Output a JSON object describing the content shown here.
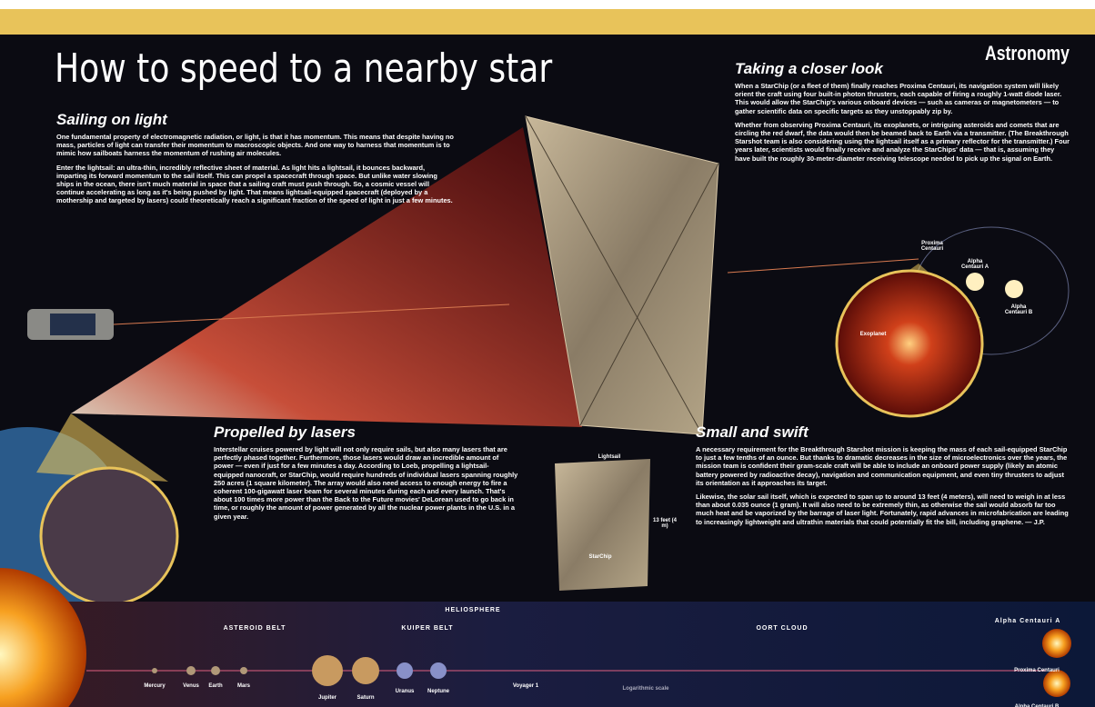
{
  "header": {
    "title": "How to speed to a nearby star",
    "logo": "Astronomy"
  },
  "sections": [
    {
      "heading": "Sailing on light",
      "paragraphs": [
        "One fundamental property of electromagnetic radiation, or light, is that it has momentum. This means that despite having no mass, particles of light can transfer their momentum to macroscopic objects. And one way to harness that momentum is to mimic how sailboats harness the momentum of rushing air molecules.",
        "Enter the lightsail: an ultra-thin, incredibly reflective sheet of material. As light hits a lightsail, it bounces backward, imparting its forward momentum to the sail itself. This can propel a spacecraft through space. But unlike water slowing ships in the ocean, there isn't much material in space that a sailing craft must push through. So, a cosmic vessel will continue accelerating as long as it's being pushed by light. That means lightsail-equipped spacecraft (deployed by a mothership and targeted by lasers) could theoretically reach a significant fraction of the speed of light in just a few minutes."
      ]
    },
    {
      "heading": "Taking a closer look",
      "paragraphs": [
        "When a StarChip (or a fleet of them) finally reaches Proxima Centauri, its navigation system will likely orient the craft using four built-in photon thrusters, each capable of firing a roughly 1-watt diode laser. This would allow the StarChip's various onboard devices — such as cameras or magnetometers — to gather scientific data on specific targets as they unstoppably zip by.",
        "Whether from observing Proxima Centauri, its exoplanets, or intriguing asteroids and comets that are circling the red dwarf, the data would then be beamed back to Earth via a transmitter. (The Breakthrough Starshot team is also considering using the lightsail itself as a primary reflector for the transmitter.) Four years later, scientists would finally receive and analyze the StarChips' data — that is, assuming they have built the roughly 30-meter-diameter receiving telescope needed to pick up the signal on Earth."
      ]
    },
    {
      "heading": "Propelled by lasers",
      "paragraphs": [
        "Interstellar cruises powered by light will not only require sails, but also many lasers that are perfectly phased together. Furthermore, those lasers would draw an incredible amount of power — even if just for a few minutes a day. According to Loeb, propelling a lightsail-equipped nanocraft, or StarChip, would require hundreds of individual lasers spanning roughly 250 acres (1 square kilometer). The array would also need access to enough energy to fire a coherent 100-gigawatt laser beam for several minutes during each and every launch. That's about 100 times more power than the Back to the Future movies' DeLorean used to go back in time, or roughly the amount of power generated by all the nuclear power plants in the U.S. in a given year."
      ]
    },
    {
      "heading": "Small and swift",
      "paragraphs": [
        "A necessary requirement for the Breakthrough Starshot mission is keeping the mass of each sail-equipped StarChip to just a few tenths of an ounce. But thanks to dramatic decreases in the size of microelectronics over the years, the mission team is confident their gram-scale craft will be able to include an onboard power supply (likely an atomic battery powered by radioactive decay), navigation and communication equipment, and even tiny thrusters to adjust its orientation as it approaches its target.",
        "Likewise, the solar sail itself, which is expected to span up to around 13 feet (4 meters), will need to weigh in at less than about 0.035 ounce (1 gram). It will also need to be extremely thin, as otherwise the sail would absorb far too much heat and be vaporized by the barrage of laser light. Fortunately, rapid advances in microfabrication are leading to increasingly lightweight and ultrathin materials that could potentially fit the bill, including graphene. — J.P."
      ]
    }
  ],
  "labels": {
    "proxima": "Proxima Centauri",
    "alpha_a": "Alpha Centauri A",
    "alpha_b": "Alpha Centauri B",
    "exoplanet": "Exoplanet",
    "lightsail": "Lightsail",
    "size": "13 feet (4 m)",
    "starchip": "StarChip"
  },
  "scale": {
    "objects": [
      "Mercury",
      "Venus",
      "Earth",
      "Mars",
      "Jupiter",
      "Saturn",
      "Uranus",
      "Neptune",
      "Voyager 1",
      "Proxima Centauri",
      "Alpha Centauri B"
    ],
    "regions": [
      "ASTEROID BELT",
      "KUIPER BELT",
      "HELIOSPHERE",
      "OORT CLOUD",
      "Alpha Centauri A"
    ],
    "note": "Logarithmic scale"
  }
}
